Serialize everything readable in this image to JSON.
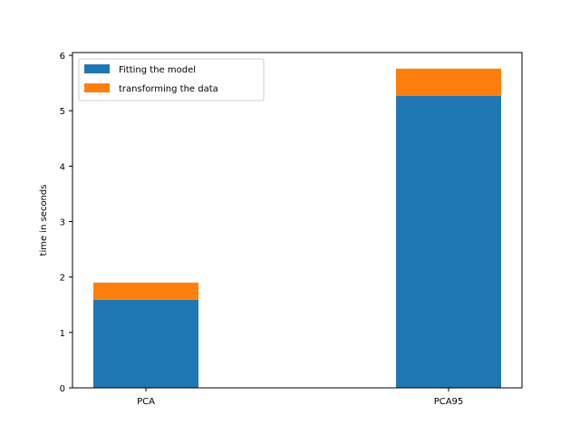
{
  "chart_data": {
    "type": "bar",
    "stacked": true,
    "title": "",
    "xlabel": "",
    "ylabel": "time in seconds",
    "categories": [
      "PCA",
      "PCA95"
    ],
    "series": [
      {
        "name": "Fitting the model",
        "color": "#1f77b4",
        "values": [
          1.59,
          5.27
        ]
      },
      {
        "name": "transforming the data",
        "color": "#ff7f0e",
        "values": [
          0.31,
          0.49
        ]
      }
    ],
    "ylim": [
      0,
      6.05
    ],
    "yticks": [
      0,
      1,
      2,
      3,
      4,
      5,
      6
    ],
    "grid": false,
    "legend_position": "top-left"
  }
}
